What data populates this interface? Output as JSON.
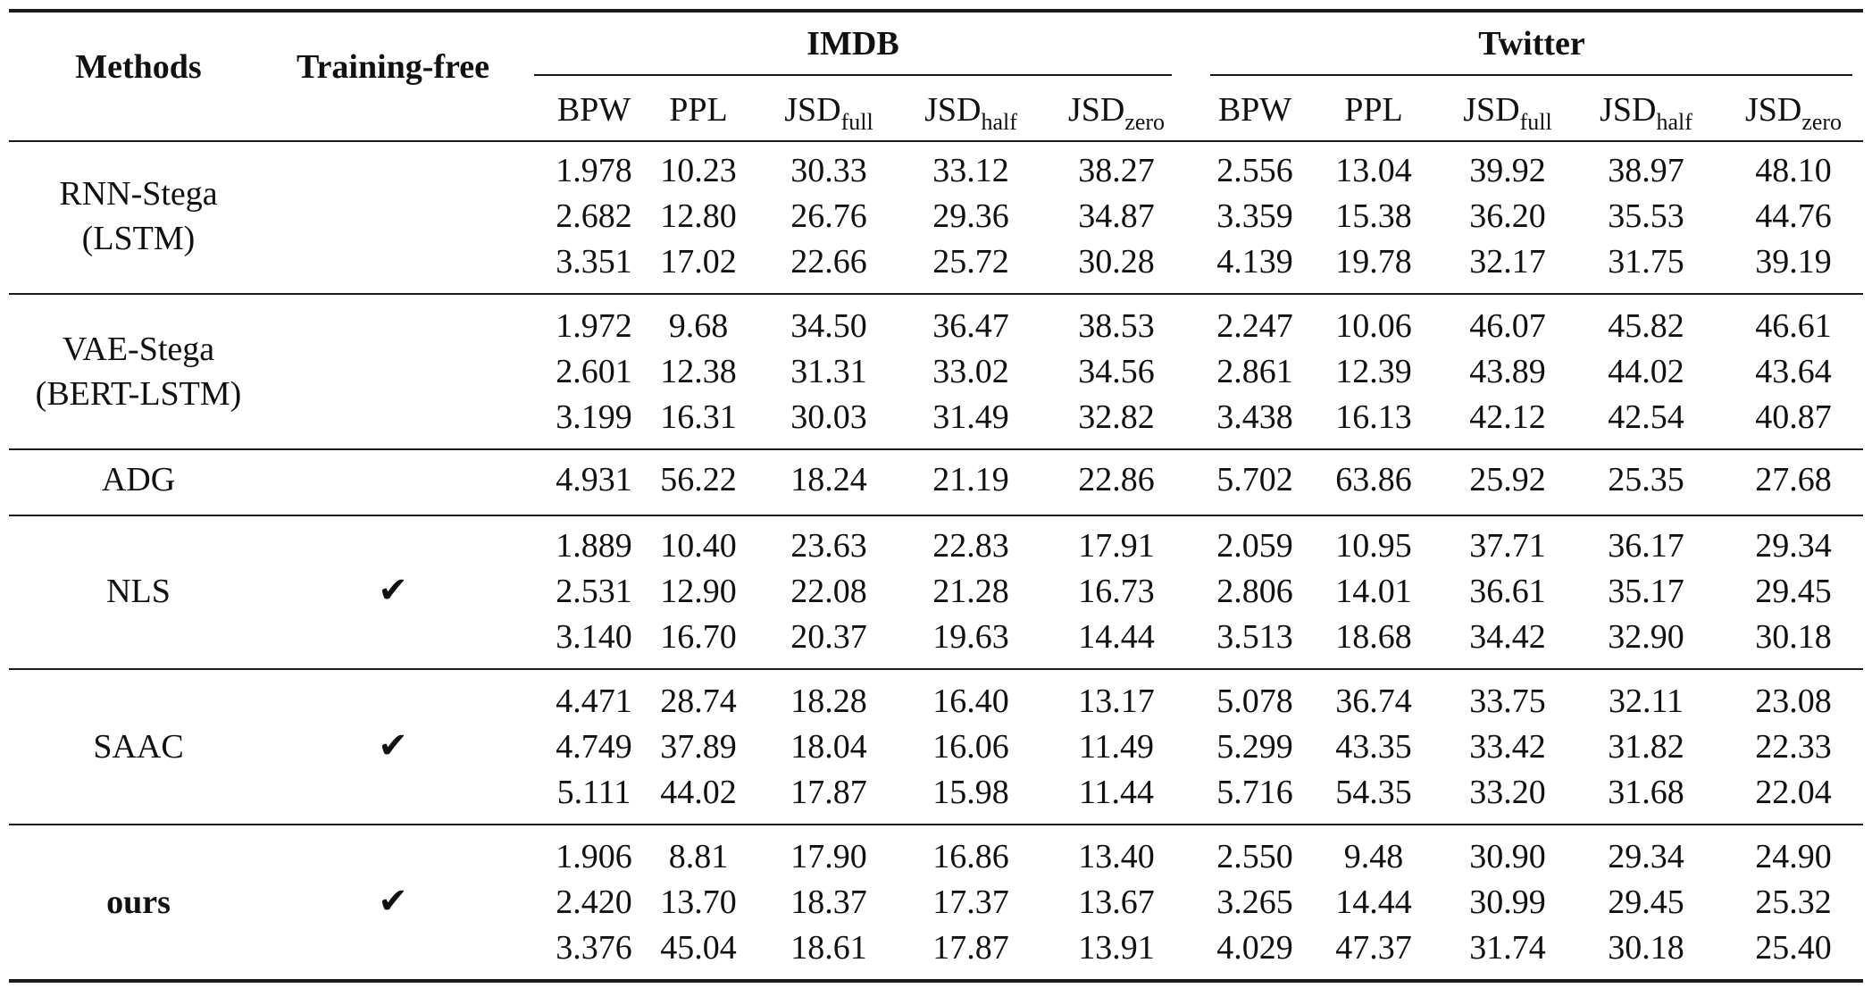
{
  "header": {
    "methods": "Methods",
    "training_free": "Training-free",
    "imdb": "IMDB",
    "twitter": "Twitter"
  },
  "subheaders": [
    {
      "base": "BPW",
      "sub": ""
    },
    {
      "base": "PPL",
      "sub": ""
    },
    {
      "base": "JSD",
      "sub": "full"
    },
    {
      "base": "JSD",
      "sub": "half"
    },
    {
      "base": "JSD",
      "sub": "zero"
    },
    {
      "base": "BPW",
      "sub": ""
    },
    {
      "base": "PPL",
      "sub": ""
    },
    {
      "base": "JSD",
      "sub": "full"
    },
    {
      "base": "JSD",
      "sub": "half"
    },
    {
      "base": "JSD",
      "sub": "zero"
    }
  ],
  "groups": [
    {
      "name_lines": [
        "RNN-Stega",
        "(LSTM)"
      ],
      "bold": false,
      "training_free": "",
      "rows": [
        [
          "1.978",
          "10.23",
          "30.33",
          "33.12",
          "38.27",
          "2.556",
          "13.04",
          "39.92",
          "38.97",
          "48.10"
        ],
        [
          "2.682",
          "12.80",
          "26.76",
          "29.36",
          "34.87",
          "3.359",
          "15.38",
          "36.20",
          "35.53",
          "44.76"
        ],
        [
          "3.351",
          "17.02",
          "22.66",
          "25.72",
          "30.28",
          "4.139",
          "19.78",
          "32.17",
          "31.75",
          "39.19"
        ]
      ]
    },
    {
      "name_lines": [
        "VAE-Stega",
        "(BERT-LSTM)"
      ],
      "bold": false,
      "training_free": "",
      "rows": [
        [
          "1.972",
          "9.68",
          "34.50",
          "36.47",
          "38.53",
          "2.247",
          "10.06",
          "46.07",
          "45.82",
          "46.61"
        ],
        [
          "2.601",
          "12.38",
          "31.31",
          "33.02",
          "34.56",
          "2.861",
          "12.39",
          "43.89",
          "44.02",
          "43.64"
        ],
        [
          "3.199",
          "16.31",
          "30.03",
          "31.49",
          "32.82",
          "3.438",
          "16.13",
          "42.12",
          "42.54",
          "40.87"
        ]
      ]
    },
    {
      "name_lines": [
        "ADG"
      ],
      "bold": false,
      "training_free": "",
      "rows": [
        [
          "4.931",
          "56.22",
          "18.24",
          "21.19",
          "22.86",
          "5.702",
          "63.86",
          "25.92",
          "25.35",
          "27.68"
        ]
      ]
    },
    {
      "name_lines": [
        "NLS"
      ],
      "bold": false,
      "training_free": "✔",
      "rows": [
        [
          "1.889",
          "10.40",
          "23.63",
          "22.83",
          "17.91",
          "2.059",
          "10.95",
          "37.71",
          "36.17",
          "29.34"
        ],
        [
          "2.531",
          "12.90",
          "22.08",
          "21.28",
          "16.73",
          "2.806",
          "14.01",
          "36.61",
          "35.17",
          "29.45"
        ],
        [
          "3.140",
          "16.70",
          "20.37",
          "19.63",
          "14.44",
          "3.513",
          "18.68",
          "34.42",
          "32.90",
          "30.18"
        ]
      ]
    },
    {
      "name_lines": [
        "SAAC"
      ],
      "bold": false,
      "training_free": "✔",
      "rows": [
        [
          "4.471",
          "28.74",
          "18.28",
          "16.40",
          "13.17",
          "5.078",
          "36.74",
          "33.75",
          "32.11",
          "23.08"
        ],
        [
          "4.749",
          "37.89",
          "18.04",
          "16.06",
          "11.49",
          "5.299",
          "43.35",
          "33.42",
          "31.82",
          "22.33"
        ],
        [
          "5.111",
          "44.02",
          "17.87",
          "15.98",
          "11.44",
          "5.716",
          "54.35",
          "33.20",
          "31.68",
          "22.04"
        ]
      ]
    },
    {
      "name_lines": [
        "ours"
      ],
      "bold": true,
      "training_free": "✔",
      "rows": [
        [
          "1.906",
          "8.81",
          "17.90",
          "16.86",
          "13.40",
          "2.550",
          "9.48",
          "30.90",
          "29.34",
          "24.90"
        ],
        [
          "2.420",
          "13.70",
          "18.37",
          "17.37",
          "13.67",
          "3.265",
          "14.44",
          "30.99",
          "29.45",
          "25.32"
        ],
        [
          "3.376",
          "45.04",
          "18.61",
          "17.87",
          "13.91",
          "4.029",
          "47.37",
          "31.74",
          "30.18",
          "25.40"
        ]
      ]
    }
  ]
}
